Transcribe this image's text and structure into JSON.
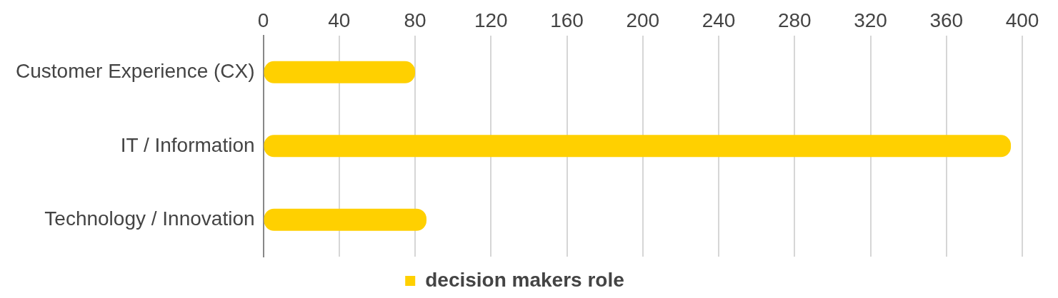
{
  "chart_data": {
    "type": "bar",
    "orientation": "horizontal",
    "categories": [
      "Customer Experience (CX)",
      "IT / Information",
      "Technology / Innovation"
    ],
    "series": [
      {
        "name": "decision makers role",
        "color": "#ffd000",
        "values": [
          80,
          394,
          86
        ]
      }
    ],
    "xlim": [
      0,
      400
    ],
    "xticks": [
      0,
      40,
      80,
      120,
      160,
      200,
      240,
      280,
      320,
      360,
      400
    ],
    "grid": "x",
    "legend": "bottom"
  }
}
